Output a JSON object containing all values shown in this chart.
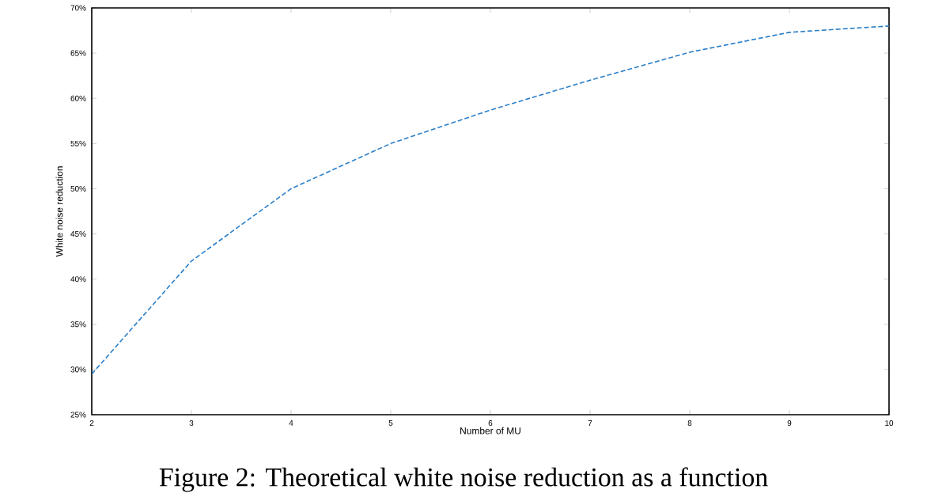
{
  "chart_data": {
    "type": "line",
    "xlabel": "Number of MU",
    "ylabel": "White noise reduction",
    "x": [
      2,
      3,
      4,
      5,
      6,
      7,
      8,
      9,
      10
    ],
    "series": [
      {
        "color": "#2a7fc9",
        "values": [
          29.5,
          42,
          50,
          55,
          58.7,
          62,
          65.1,
          67.3,
          68
        ]
      }
    ],
    "xlim": [
      2,
      10
    ],
    "xticks": [
      2,
      3,
      4,
      5,
      6,
      7,
      8,
      9,
      10
    ],
    "ylim": [
      25,
      70
    ],
    "yticks": [
      {
        "value": 25,
        "label": "25%"
      },
      {
        "value": 30,
        "label": "30%"
      },
      {
        "value": 35,
        "label": "35%"
      },
      {
        "value": 40,
        "label": "40%"
      },
      {
        "value": 45,
        "label": "45%"
      },
      {
        "value": 50,
        "label": "50%"
      },
      {
        "value": 55,
        "label": "55%"
      },
      {
        "value": 60,
        "label": "60%"
      },
      {
        "value": 65,
        "label": "65%"
      },
      {
        "value": 70,
        "label": "70%"
      }
    ],
    "marker": "none",
    "line_style": "dashed",
    "annotations": [
      "Figure 2: Theoretical white noise reduction as a function"
    ]
  }
}
